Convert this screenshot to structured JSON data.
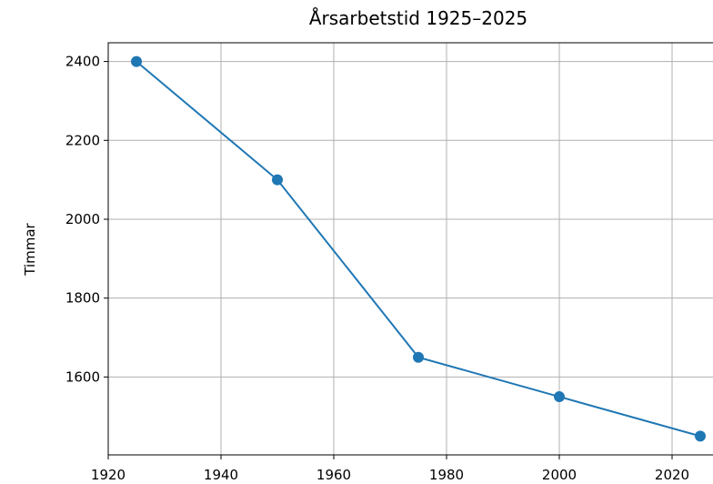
{
  "chart_data": {
    "type": "line",
    "title": "Årsarbetstid 1925–2025",
    "y_label": "Timmar",
    "x": [
      1925,
      1950,
      1975,
      2000,
      2025
    ],
    "series": [
      {
        "name": "Timmar",
        "color": "#1f77b4",
        "values": [
          2400,
          2100,
          1650,
          1550,
          1450
        ]
      }
    ],
    "xlim": [
      1920,
      2030
    ],
    "xticks": [
      1920,
      1940,
      1960,
      1980,
      2000,
      2020
    ],
    "ylim": [
      1402.5,
      2447.5
    ],
    "yticks": [
      1600,
      1800,
      2000,
      2200,
      2400
    ],
    "grid": true
  }
}
